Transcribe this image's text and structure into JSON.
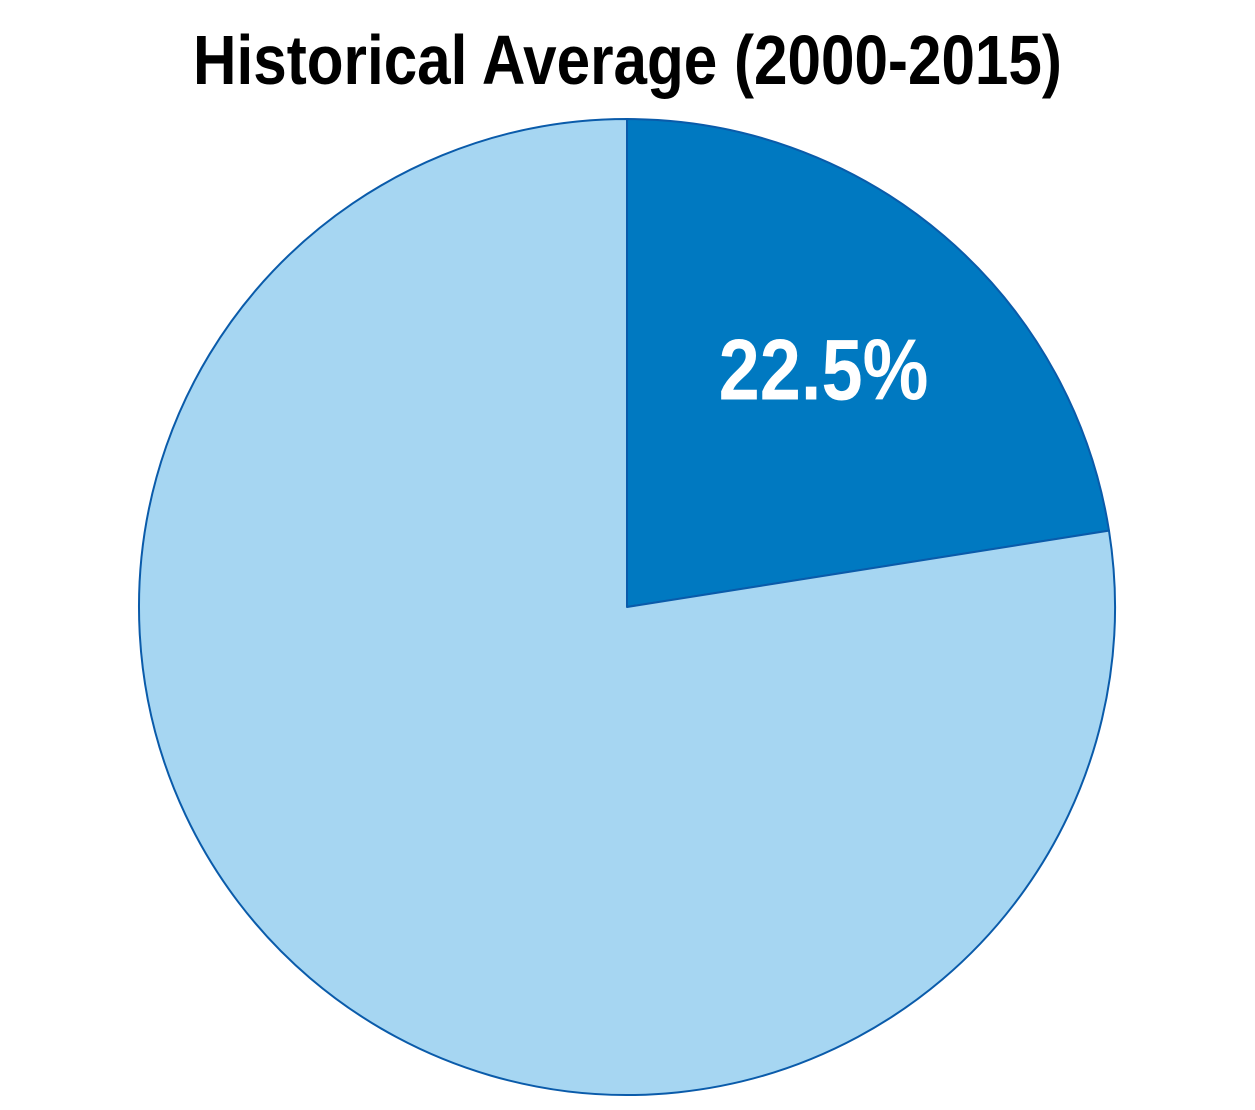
{
  "chart_data": {
    "type": "pie",
    "title": "Historical Average (2000-2015)",
    "start_angle": "12 o'clock",
    "direction": "clockwise",
    "slices": [
      {
        "value": 22.5,
        "label": "22.5%",
        "color": "#0079C1",
        "label_color": "#FFFFFF"
      },
      {
        "value": 77.5,
        "label": "",
        "color": "#A6D6F2",
        "label_color": "#FFFFFF"
      }
    ],
    "edge_color": "#0A5BAA"
  }
}
